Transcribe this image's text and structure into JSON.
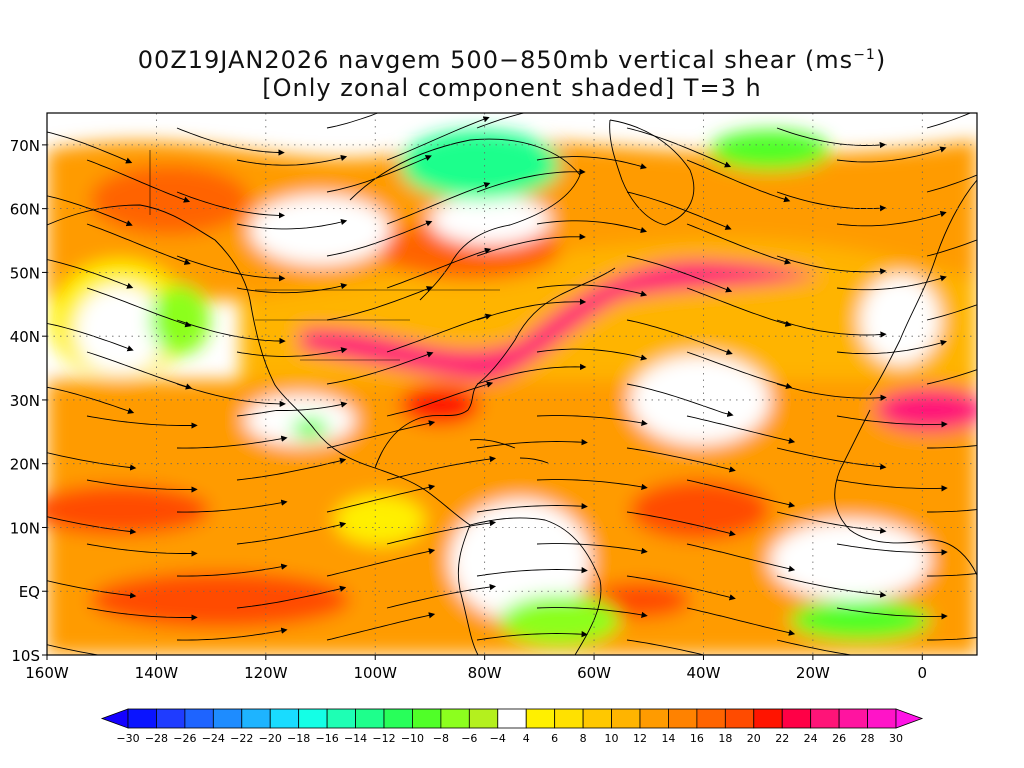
{
  "title": {
    "line1_prefix": "00Z19JAN2026 navgem 500−850mb vertical shear (ms",
    "line1_sup": "−1",
    "line1_suffix": ")",
    "line2": "[Only zonal component shaded] T=3 h"
  },
  "map": {
    "lat_labels": [
      "70N",
      "60N",
      "50N",
      "40N",
      "30N",
      "20N",
      "10N",
      "EQ",
      "10S"
    ],
    "lat_values": [
      70,
      60,
      50,
      40,
      30,
      20,
      10,
      0,
      -10
    ],
    "lon_labels": [
      "160W",
      "140W",
      "120W",
      "100W",
      "80W",
      "60W",
      "40W",
      "20W",
      "0"
    ],
    "lon_values": [
      -160,
      -140,
      -120,
      -100,
      -80,
      -60,
      -40,
      -20,
      0
    ],
    "lon_range": [
      -160,
      10
    ],
    "lat_range": [
      -10,
      75
    ],
    "grid": "dotted",
    "overlay": "streamlines",
    "coastline_color": "#000000"
  },
  "colorbar": {
    "labels": [
      "−30",
      "−28",
      "−26",
      "−24",
      "−22",
      "−20",
      "−18",
      "−16",
      "−14",
      "−12",
      "−10",
      "−8",
      "−6",
      "−4",
      "4",
      "6",
      "8",
      "10",
      "12",
      "14",
      "16",
      "18",
      "20",
      "22",
      "24",
      "26",
      "28",
      "30"
    ],
    "colors": [
      "#0a14ff",
      "#1f3cff",
      "#1e64ff",
      "#1e8cff",
      "#1eb4ff",
      "#19dcff",
      "#14ffe6",
      "#1effb4",
      "#1eff8c",
      "#28ff5a",
      "#50ff28",
      "#8cff1e",
      "#b4f01e",
      "#ffffff",
      "#fff000",
      "#ffe100",
      "#ffc800",
      "#ffb400",
      "#ff9b00",
      "#ff8200",
      "#ff6400",
      "#ff4b00",
      "#ff1400",
      "#ff0046",
      "#ff1478",
      "#ff14a0",
      "#ff14c8"
    ],
    "below_color": "#1400ff",
    "above_color": "#ff14e6"
  }
}
